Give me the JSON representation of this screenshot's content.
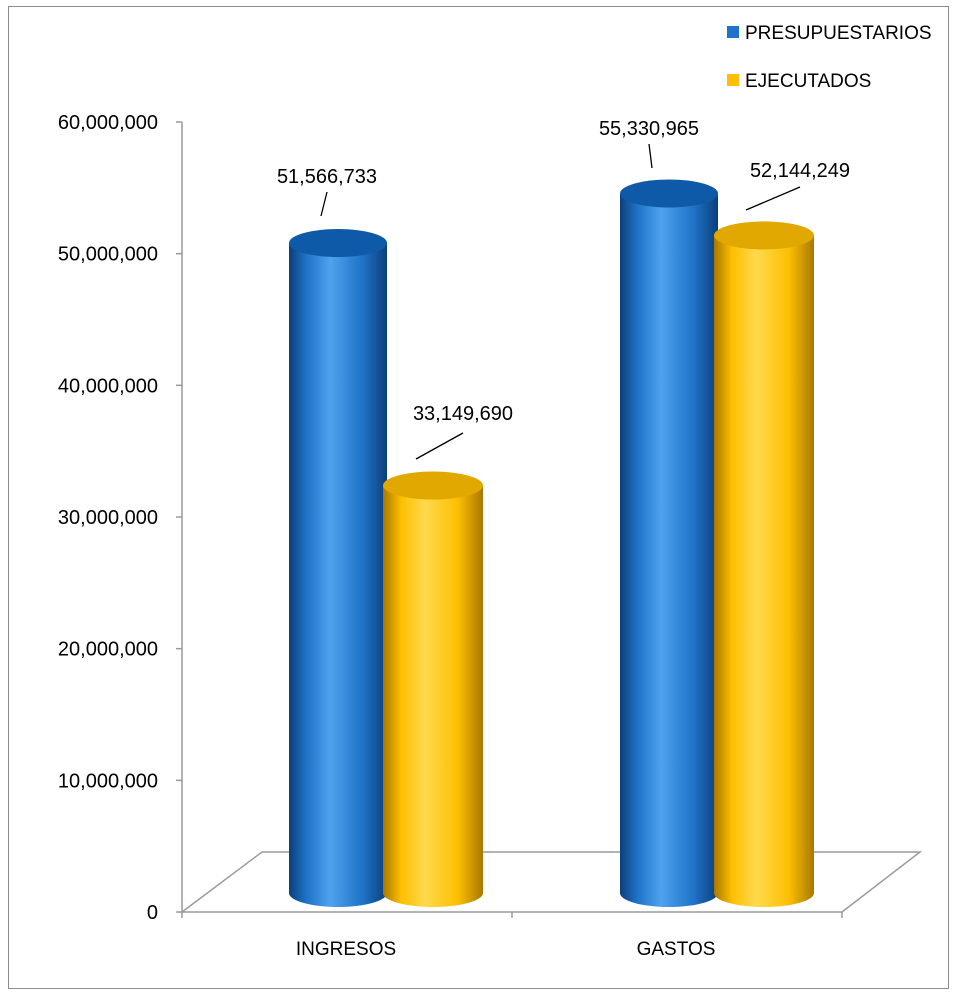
{
  "colors": {
    "blue_mid": "#1f73c8",
    "blue_light": "#4ea2ee",
    "blue_dark": "#0c3f7a",
    "blue_top": "#0f5aa8",
    "gold_mid": "#fdbf00",
    "gold_light": "#ffd94d",
    "gold_dark": "#a87800",
    "gold_top": "#e0a800",
    "axis": "#9a9a9a",
    "border": "#8c8c8c"
  },
  "chart_data": {
    "type": "bar",
    "variant": "3d-cylinder",
    "categories": [
      "INGRESOS",
      "GASTOS"
    ],
    "series": [
      {
        "name": "PRESUPUESTARIOS",
        "values": [
          51566733,
          55330965
        ],
        "labels": [
          "51,566,733",
          "55,330,965"
        ],
        "color": "#1f73c8"
      },
      {
        "name": "EJECUTADOS",
        "values": [
          33149690,
          52144249
        ],
        "labels": [
          "33,149,690",
          "52,144,249"
        ],
        "color": "#fdbf00"
      }
    ],
    "yticks": [
      0,
      10000000,
      20000000,
      30000000,
      40000000,
      50000000,
      60000000
    ],
    "ytick_labels": [
      "0",
      "10,000,000",
      "20,000,000",
      "30,000,000",
      "40,000,000",
      "50,000,000",
      "60,000,000"
    ],
    "ylim": [
      0,
      60000000
    ],
    "legend_position": "top-right",
    "grid": false
  }
}
